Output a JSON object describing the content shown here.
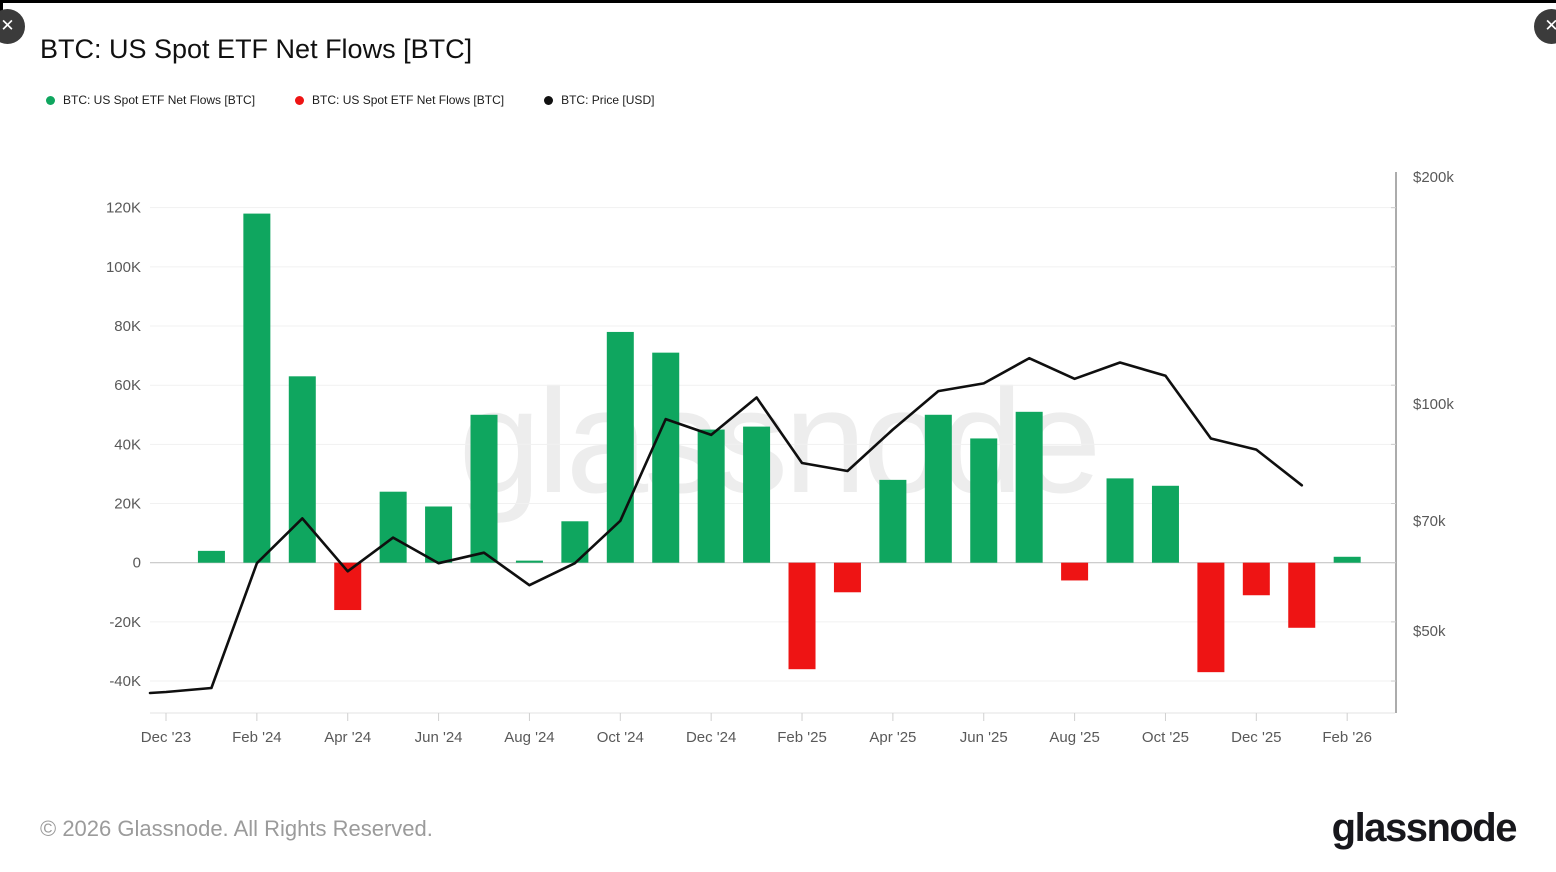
{
  "window": {
    "close_glyph": "✕"
  },
  "header": {
    "title": "BTC: US Spot ETF Net Flows [BTC]"
  },
  "legend": [
    {
      "label": "BTC: US Spot ETF Net Flows [BTC]",
      "color": "#0fa65f"
    },
    {
      "label": "BTC: US Spot ETF Net Flows [BTC]",
      "color": "#ee1414"
    },
    {
      "label": "BTC: Price [USD]",
      "color": "#111111"
    }
  ],
  "watermark": "glassnode",
  "footer": {
    "copyright": "© 2026 Glassnode. All Rights Reserved.",
    "brand": "glassnode"
  },
  "chart_data": {
    "type": "mixed",
    "title": "BTC: US Spot ETF Net Flows [BTC]",
    "x": [
      "Dec '23",
      "Jan '24",
      "Feb '24",
      "Mar '24",
      "Apr '24",
      "May '24",
      "Jun '24",
      "Jul '24",
      "Aug '24",
      "Sep '24",
      "Oct '24",
      "Nov '24",
      "Dec '24",
      "Jan '25",
      "Feb '25",
      "Mar '25",
      "Apr '25",
      "May '25",
      "Jun '25",
      "Jul '25",
      "Aug '25",
      "Sep '25",
      "Oct '25",
      "Nov '25",
      "Dec '25",
      "Jan '26",
      "Feb '26"
    ],
    "x_ticks_shown": [
      "Dec '23",
      "Feb '24",
      "Apr '24",
      "Jun '24",
      "Aug '24",
      "Oct '24",
      "Dec '24",
      "Feb '25",
      "Apr '25",
      "Jun '25",
      "Aug '25",
      "Oct '25",
      "Dec '25",
      "Feb '26"
    ],
    "series": [
      {
        "name": "BTC: US Spot ETF Net Flows [BTC]",
        "type": "bar",
        "axis": "left",
        "unit": "BTC",
        "color_positive": "#0fa65f",
        "color_negative": "#ee1414",
        "values": [
          null,
          4000,
          118000,
          63000,
          -16000,
          24000,
          19000,
          50000,
          700,
          14000,
          78000,
          71000,
          45000,
          46000,
          -36000,
          -10000,
          28000,
          50000,
          42000,
          51000,
          -6000,
          28500,
          26000,
          -37000,
          -11000,
          -22000,
          2000
        ]
      },
      {
        "name": "BTC: Price [USD]",
        "type": "line",
        "axis": "right",
        "unit": "USD",
        "color": "#0f0f0f",
        "values": [
          41500,
          42000,
          61500,
          70500,
          60000,
          66500,
          61500,
          63500,
          57500,
          61500,
          70000,
          95500,
          91000,
          102000,
          83500,
          81500,
          92500,
          104000,
          106500,
          115000,
          108000,
          113500,
          109000,
          90000,
          87000,
          78000,
          null
        ]
      }
    ],
    "left_axis": {
      "unit": "BTC",
      "tick_values": [
        120000,
        100000,
        80000,
        60000,
        40000,
        20000,
        0,
        -20000,
        -40000
      ],
      "tick_labels": [
        "120K",
        "100K",
        "80K",
        "60K",
        "40K",
        "20K",
        "0",
        "-20K",
        "-40K"
      ],
      "range": [
        -50800,
        132700
      ],
      "grid": true
    },
    "right_axis": {
      "unit": "USD",
      "scale": "log",
      "tick_values": [
        200000,
        100000,
        70000,
        50000
      ],
      "tick_labels": [
        "$200k",
        "$100k",
        "$70k",
        "$50k"
      ]
    },
    "legend_position": "top-left"
  }
}
